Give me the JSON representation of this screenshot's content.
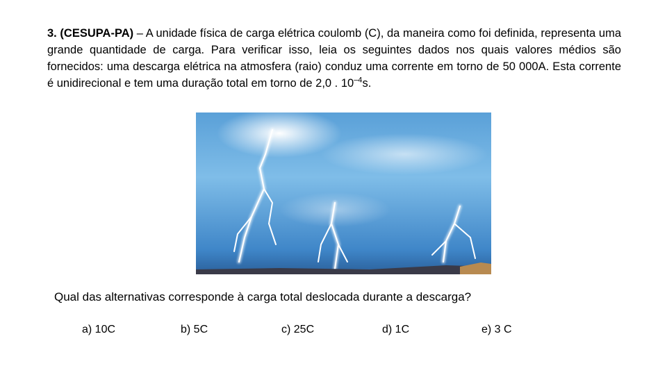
{
  "question": {
    "label": "3. (CESUPA-PA)",
    "text": " – A unidade física de carga elétrica coulomb (C), da maneira como foi definida, representa uma grande quantidade de carga. Para verificar isso, leia os seguintes dados nos quais valores médios são fornecidos: uma descarga elétrica na atmosfera (raio) conduz uma corrente em torno de 50 000A. Esta corrente é unidirecional e tem uma duração total em torno de 2,0 . 10",
    "exponent": "–4",
    "unit": "s.",
    "prompt": "Qual das alternativas corresponde à carga total deslocada durante a descarga?",
    "options": [
      "a) 10C",
      "b) 5C",
      "c) 25C",
      "d) 1C",
      "e) 3 C"
    ]
  }
}
